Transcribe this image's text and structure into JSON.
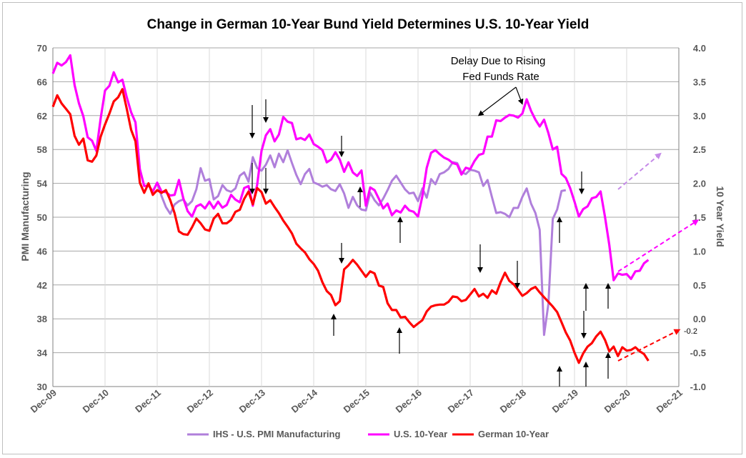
{
  "chart_data": {
    "type": "line",
    "title": "Change in German 10-Year Bund Yield Determines U.S. 10-Year Yield",
    "ylabel_left": "PMI Manufacturing",
    "ylabel_right": "10 Year Yield",
    "ylim_left": [
      30,
      70
    ],
    "ylim_right": [
      -1.0,
      4.0
    ],
    "left_ticks": [
      "70",
      "66",
      "62",
      "58",
      "54",
      "50",
      "46",
      "42",
      "38",
      "34",
      "30"
    ],
    "right_ticks": [
      "4.0",
      "3.5",
      "3.0",
      "2.5",
      "2.0",
      "1.5",
      "1.0",
      "0.5",
      "0.0",
      "-0.5",
      "-1.0"
    ],
    "x_ticks": [
      "Dec-09",
      "Dec-10",
      "Dec-11",
      "Dec-12",
      "Dec-13",
      "Dec-14",
      "Dec-15",
      "Dec-16",
      "Dec-17",
      "Dec-18",
      "Dec-19",
      "Dec-20",
      "Dec-21"
    ],
    "x_start": "Dec-09",
    "months_per_tick": 12,
    "grid": true,
    "legend_position": "bottom",
    "series": [
      {
        "name": "IHS - U.S. PMI Manufacturing",
        "color": "#b07fdb",
        "axis": "left",
        "start_month": 24,
        "values": [
          54,
          52.5,
          51.2,
          50.4,
          51.5,
          51.9,
          52.1,
          51.4,
          51.9,
          53.3,
          55.8,
          54.3,
          54.5,
          52.1,
          52.5,
          53.8,
          53.2,
          53.0,
          53.4,
          54.9,
          55.3,
          54.2,
          57.1,
          55.8,
          55.5,
          56.2,
          57.3,
          55.9,
          57.5,
          56.5,
          57.9,
          56.4,
          55.0,
          53.9,
          55.1,
          55.7,
          54.1,
          53.9,
          53.6,
          53.8,
          53.3,
          53.1,
          53.9,
          52.8,
          51.1,
          52.4,
          51.4,
          50.9,
          50.8,
          52.9,
          52.0,
          51.4,
          52.2,
          53.2,
          54.3,
          54.9,
          54.1,
          53.3,
          52.8,
          52.9,
          51.9,
          53.4,
          52.3,
          54.5,
          53.9,
          55.1,
          55.3,
          55.7,
          56.5,
          56.4,
          55.3,
          55.1,
          55.6,
          55.5,
          55.3,
          53.7,
          54.4,
          52.4,
          50.5,
          50.6,
          50.4,
          50.0,
          51.1,
          51.1,
          52.4,
          53.4,
          51.6,
          50.5,
          48.5,
          36.1,
          39.8,
          49.8,
          50.9,
          53.1,
          53.2
        ]
      },
      {
        "name": "U.S. 10-Year",
        "color": "#ff00ff",
        "axis": "right",
        "start_month": 0,
        "values": [
          3.62,
          3.78,
          3.74,
          3.79,
          3.89,
          3.45,
          3.18,
          2.99,
          2.68,
          2.63,
          2.48,
          2.96,
          3.37,
          3.44,
          3.64,
          3.49,
          3.53,
          3.27,
          3.05,
          2.9,
          2.21,
          1.96,
          1.97,
          1.88,
          2.01,
          1.88,
          1.87,
          1.82,
          1.83,
          2.05,
          1.78,
          1.59,
          1.51,
          1.66,
          1.69,
          1.63,
          1.73,
          1.63,
          1.73,
          1.64,
          1.68,
          1.83,
          1.76,
          1.72,
          1.93,
          1.96,
          1.67,
          1.98,
          2.48,
          2.71,
          2.8,
          2.62,
          2.72,
          2.98,
          2.91,
          2.89,
          2.65,
          2.67,
          2.64,
          2.72,
          2.58,
          2.54,
          2.49,
          2.31,
          2.35,
          2.46,
          2.35,
          2.17,
          2.31,
          2.16,
          2.11,
          2.19,
          1.67,
          1.94,
          1.9,
          1.77,
          1.63,
          1.7,
          1.53,
          1.6,
          1.57,
          1.67,
          1.6,
          1.58,
          1.51,
          1.81,
          2.23,
          2.45,
          2.49,
          2.43,
          2.38,
          2.35,
          2.3,
          2.28,
          2.13,
          2.23,
          2.21,
          2.33,
          2.42,
          2.44,
          2.69,
          2.69,
          2.93,
          2.92,
          2.97,
          3.01,
          3.0,
          2.97,
          3.03,
          3.24,
          3.07,
          2.94,
          2.84,
          2.94,
          2.74,
          2.5,
          2.54,
          2.14,
          2.08,
          1.93,
          1.73,
          1.51,
          1.62,
          1.66,
          1.78,
          1.8,
          1.88,
          1.51,
          1.09,
          0.57,
          0.67,
          0.65,
          0.66,
          0.59,
          0.7,
          0.71,
          0.82,
          0.87
        ]
      },
      {
        "name": "German 10-Year",
        "color": "#ff0000",
        "axis": "right",
        "start_month": 0,
        "values": [
          3.13,
          3.3,
          3.18,
          3.1,
          3.02,
          2.7,
          2.57,
          2.66,
          2.34,
          2.32,
          2.41,
          2.69,
          2.87,
          3.03,
          3.21,
          3.27,
          3.39,
          3.1,
          2.79,
          2.62,
          2.01,
          1.86,
          2.0,
          1.83,
          1.9,
          1.86,
          1.9,
          1.75,
          1.56,
          1.29,
          1.25,
          1.24,
          1.35,
          1.48,
          1.41,
          1.32,
          1.3,
          1.48,
          1.55,
          1.41,
          1.41,
          1.46,
          1.58,
          1.61,
          1.77,
          1.88,
          1.69,
          1.93,
          1.87,
          1.7,
          1.75,
          1.65,
          1.56,
          1.45,
          1.36,
          1.26,
          1.11,
          1.04,
          0.98,
          0.88,
          0.81,
          0.71,
          0.54,
          0.41,
          0.35,
          0.2,
          0.26,
          0.73,
          0.79,
          0.87,
          0.8,
          0.71,
          0.62,
          0.7,
          0.67,
          0.49,
          0.47,
          0.23,
          0.13,
          0.13,
          0.02,
          0.03,
          -0.05,
          -0.12,
          -0.07,
          -0.02,
          0.11,
          0.18,
          0.2,
          0.21,
          0.21,
          0.25,
          0.33,
          0.32,
          0.26,
          0.28,
          0.36,
          0.44,
          0.33,
          0.37,
          0.31,
          0.42,
          0.37,
          0.54,
          0.68,
          0.56,
          0.51,
          0.43,
          0.34,
          0.38,
          0.44,
          0.47,
          0.39,
          0.32,
          0.25,
          0.18,
          0.1,
          -0.05,
          -0.2,
          -0.32,
          -0.5,
          -0.65,
          -0.51,
          -0.41,
          -0.36,
          -0.26,
          -0.19,
          -0.31,
          -0.48,
          -0.41,
          -0.55,
          -0.42,
          -0.47,
          -0.46,
          -0.42,
          -0.48,
          -0.52,
          -0.62
        ]
      }
    ],
    "annotations": {
      "delay_line1": "Delay Due to Rising",
      "delay_line2": "Fed Funds Rate",
      "end_label": "-0.2"
    }
  }
}
